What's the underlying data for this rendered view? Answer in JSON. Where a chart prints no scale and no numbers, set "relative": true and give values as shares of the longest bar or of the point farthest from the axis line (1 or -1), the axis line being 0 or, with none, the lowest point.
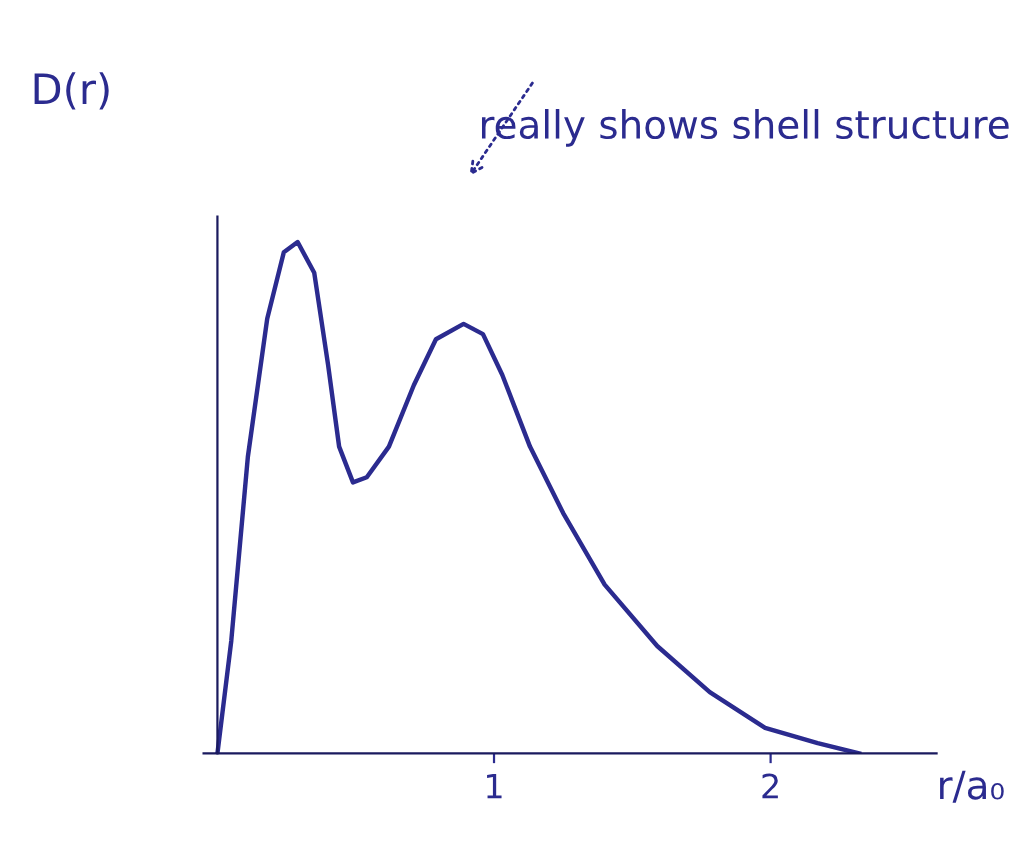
{
  "chart_data": {
    "type": "line",
    "relative": true,
    "ylabel": "D(r)",
    "xlabel": "r/a₀",
    "annotations": [
      "really shows shell structure"
    ],
    "x": [
      0,
      0.05,
      0.11,
      0.18,
      0.24,
      0.29,
      0.35,
      0.4,
      0.44,
      0.49,
      0.54,
      0.62,
      0.71,
      0.79,
      0.89,
      0.96,
      1.03,
      1.13,
      1.25,
      1.4,
      1.59,
      1.78,
      1.98,
      2.17,
      2.32
    ],
    "series": [
      {
        "color": "#2b2b8f",
        "values": [
          0,
          0.22,
          0.58,
          0.85,
          0.98,
          1.0,
          0.94,
          0.76,
          0.6,
          0.53,
          0.54,
          0.6,
          0.72,
          0.81,
          0.84,
          0.82,
          0.74,
          0.6,
          0.47,
          0.33,
          0.21,
          0.12,
          0.05,
          0.02,
          0.0
        ]
      }
    ],
    "xlim": [
      -0.05,
      2.6
    ],
    "xticks": [
      1,
      2
    ],
    "grid": false,
    "marker": "none",
    "line_style": "solid"
  }
}
